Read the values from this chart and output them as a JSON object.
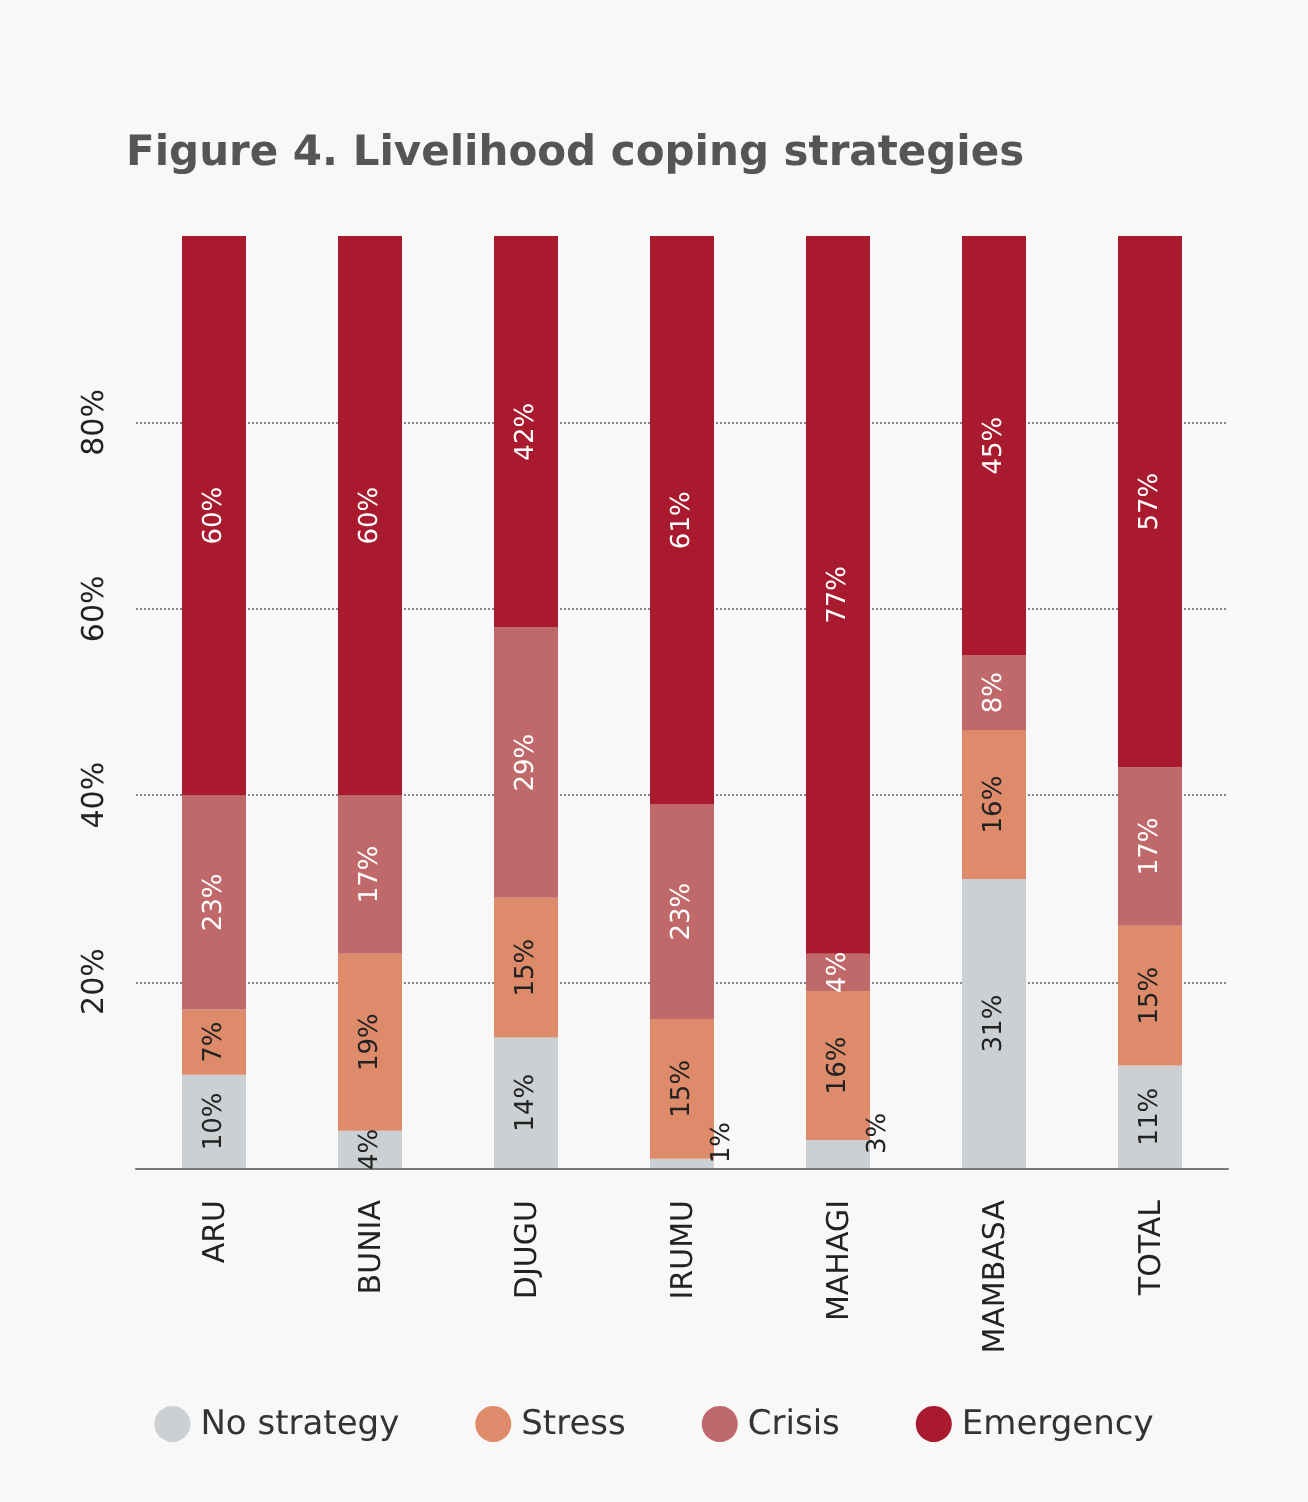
{
  "chart_data": {
    "type": "bar",
    "title": "Figure 4. Livelihood coping strategies",
    "stacked": true,
    "categories": [
      "ARU",
      "BUNIA",
      "DJUGU",
      "IRUMU",
      "MAHAGI",
      "MAMBASA",
      "TOTAL"
    ],
    "series": [
      {
        "name": "No strategy",
        "color": "#cdd0d2",
        "values": [
          10,
          4,
          14,
          1,
          3,
          31,
          11
        ],
        "value_labels": [
          "10%",
          "4%",
          "14%",
          "1%",
          "3%",
          "31%",
          "11%"
        ]
      },
      {
        "name": "Stress",
        "color": "#de8b6b",
        "values": [
          7,
          19,
          15,
          15,
          16,
          16,
          15
        ],
        "value_labels": [
          "7%",
          "19%",
          "15%",
          "15%",
          "16%",
          "16%",
          "15%"
        ]
      },
      {
        "name": "Crisis",
        "color": "#c0696a",
        "values": [
          23,
          17,
          29,
          23,
          4,
          8,
          17
        ],
        "value_labels": [
          "23%",
          "17%",
          "29%",
          "23%",
          "4%",
          "8%",
          "17%"
        ]
      },
      {
        "name": "Emergency",
        "color": "#a91a2f",
        "values": [
          60,
          60,
          42,
          61,
          77,
          45,
          57
        ],
        "value_labels": [
          "60%",
          "60%",
          "42%",
          "61%",
          "77%",
          "45%",
          "57%"
        ]
      }
    ],
    "ylim": [
      0,
      100
    ],
    "yticks": [
      {
        "value": 20,
        "label": "20%"
      },
      {
        "value": 40,
        "label": "40%"
      },
      {
        "value": 60,
        "label": "60%"
      },
      {
        "value": 80,
        "label": "80%"
      }
    ],
    "grid": "y",
    "legend": "bottom"
  }
}
